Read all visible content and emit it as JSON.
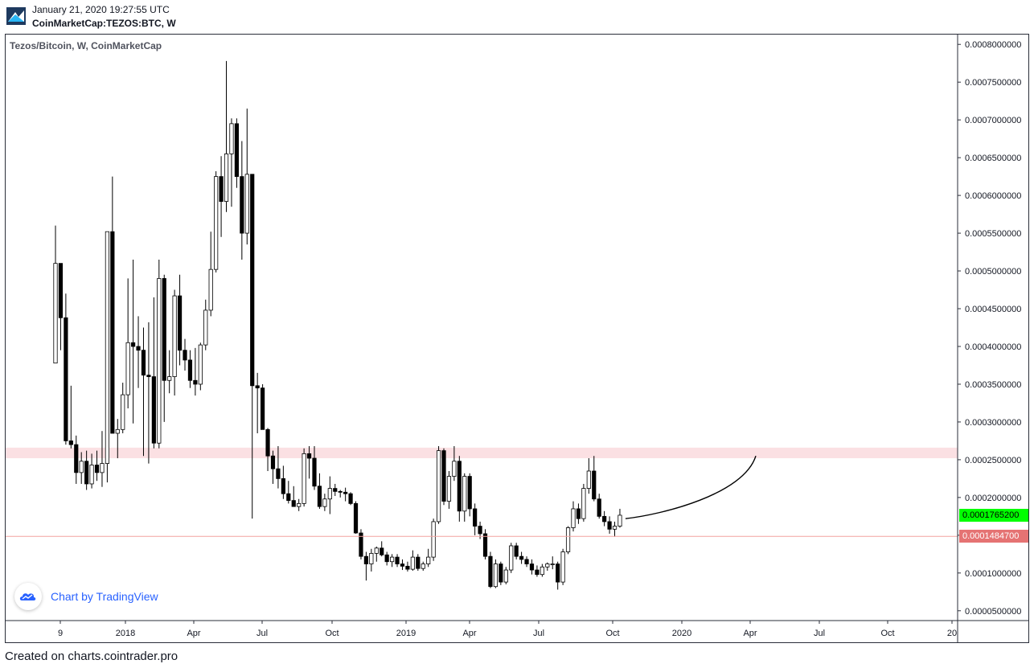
{
  "header": {
    "date": "January 21, 2020 19:27:55 UTC",
    "symbol": "CoinMarketCap:TEZOS:BTC, W",
    "logo_icon": "tradingview-logo-icon"
  },
  "legend": {
    "title": "Tezos/Bitcoin, W, CoinMarketCap"
  },
  "watermark": {
    "text": "Chart by TradingView",
    "icon": "tradingview-cloud-icon"
  },
  "footer": {
    "text": "Created on charts.cointrader.pro"
  },
  "price_labels": {
    "current": {
      "value": "0.0001765200",
      "color": "#00ff00"
    },
    "support": {
      "value": "0.0001484700",
      "color": "#e57373"
    }
  },
  "chart_data": {
    "type": "candlestick",
    "title": "Tezos/Bitcoin, W, CoinMarketCap",
    "interval": "W",
    "x_ticks": [
      "9",
      "2018",
      "Apr",
      "Jul",
      "Oct",
      "2019",
      "Apr",
      "Jul",
      "Oct",
      "2020",
      "Apr",
      "Jul",
      "Oct",
      "20"
    ],
    "y_ticks": [
      "0.0000500000",
      "0.0001000000",
      "0.0001500000",
      "0.0002000000",
      "0.0002500000",
      "0.0003000000",
      "0.0003500000",
      "0.0004000000",
      "0.0004500000",
      "0.0005000000",
      "0.0005500000",
      "0.0006000000",
      "0.0006500000",
      "0.0007000000",
      "0.0007500000",
      "0.0008000000"
    ],
    "ylim": [
      3.7e-05,
      0.000813
    ],
    "resistance_zone": [
      0.000252,
      0.000266
    ],
    "support_line": 0.00014847,
    "projected_curve": {
      "from": 0.000172,
      "to": 0.000255
    },
    "bull_color": "#ffffff",
    "bear_color": "#000000",
    "candles": [
      {
        "o": 0.000378,
        "h": 0.00056,
        "l": 0.000378,
        "c": 0.00051
      },
      {
        "o": 0.00051,
        "h": 0.00051,
        "l": 0.000395,
        "c": 0.000438
      },
      {
        "o": 0.000438,
        "h": 0.00047,
        "l": 0.00027,
        "c": 0.000275
      },
      {
        "o": 0.000275,
        "h": 0.000348,
        "l": 0.000265,
        "c": 0.00027
      },
      {
        "o": 0.00027,
        "h": 0.000282,
        "l": 0.000218,
        "c": 0.000233
      },
      {
        "o": 0.000233,
        "h": 0.00026,
        "l": 0.000218,
        "c": 0.000248
      },
      {
        "o": 0.000248,
        "h": 0.000262,
        "l": 0.00021,
        "c": 0.000218
      },
      {
        "o": 0.000218,
        "h": 0.000258,
        "l": 0.000212,
        "c": 0.000243
      },
      {
        "o": 0.000243,
        "h": 0.000262,
        "l": 0.000222,
        "c": 0.000233
      },
      {
        "o": 0.000233,
        "h": 0.000288,
        "l": 0.000214,
        "c": 0.000245
      },
      {
        "o": 0.000245,
        "h": 0.000552,
        "l": 0.00022,
        "c": 0.000552
      },
      {
        "o": 0.000552,
        "h": 0.000625,
        "l": 0.000285,
        "c": 0.000285
      },
      {
        "o": 0.000285,
        "h": 0.000304,
        "l": 0.000252,
        "c": 0.00029
      },
      {
        "o": 0.00029,
        "h": 0.000352,
        "l": 0.000285,
        "c": 0.000336
      },
      {
        "o": 0.000336,
        "h": 0.00049,
        "l": 0.000318,
        "c": 0.000405
      },
      {
        "o": 0.000405,
        "h": 0.000515,
        "l": 0.000298,
        "c": 0.0004
      },
      {
        "o": 0.0004,
        "h": 0.00044,
        "l": 0.000345,
        "c": 0.000395
      },
      {
        "o": 0.000395,
        "h": 0.000425,
        "l": 0.000255,
        "c": 0.000362
      },
      {
        "o": 0.000362,
        "h": 0.000432,
        "l": 0.000245,
        "c": 0.00036
      },
      {
        "o": 0.00036,
        "h": 0.000465,
        "l": 0.000265,
        "c": 0.000272
      },
      {
        "o": 0.000272,
        "h": 0.000515,
        "l": 0.000265,
        "c": 0.00049
      },
      {
        "o": 0.00049,
        "h": 0.000495,
        "l": 0.0003,
        "c": 0.000355
      },
      {
        "o": 0.000355,
        "h": 0.000395,
        "l": 0.000338,
        "c": 0.00036
      },
      {
        "o": 0.00036,
        "h": 0.000475,
        "l": 0.000335,
        "c": 0.000467
      },
      {
        "o": 0.000467,
        "h": 0.000495,
        "l": 0.000375,
        "c": 0.000395
      },
      {
        "o": 0.000395,
        "h": 0.00041,
        "l": 0.000368,
        "c": 0.000382
      },
      {
        "o": 0.000382,
        "h": 0.000395,
        "l": 0.000345,
        "c": 0.000355
      },
      {
        "o": 0.000355,
        "h": 0.000398,
        "l": 0.000335,
        "c": 0.00035
      },
      {
        "o": 0.00035,
        "h": 0.000405,
        "l": 0.000342,
        "c": 0.000402
      },
      {
        "o": 0.000402,
        "h": 0.000462,
        "l": 0.000395,
        "c": 0.000448
      },
      {
        "o": 0.000448,
        "h": 0.000552,
        "l": 0.00044,
        "c": 0.000502
      },
      {
        "o": 0.000502,
        "h": 0.000632,
        "l": 0.000498,
        "c": 0.000625
      },
      {
        "o": 0.000625,
        "h": 0.000652,
        "l": 0.000545,
        "c": 0.000592
      },
      {
        "o": 0.000592,
        "h": 0.000778,
        "l": 0.000578,
        "c": 0.000655
      },
      {
        "o": 0.000655,
        "h": 0.000702,
        "l": 0.000585,
        "c": 0.000695
      },
      {
        "o": 0.000695,
        "h": 0.000702,
        "l": 0.00061,
        "c": 0.000625
      },
      {
        "o": 0.000625,
        "h": 0.000672,
        "l": 0.000515,
        "c": 0.00055
      },
      {
        "o": 0.00055,
        "h": 0.000715,
        "l": 0.000535,
        "c": 0.000628
      },
      {
        "o": 0.000628,
        "h": 0.000628,
        "l": 0.000172,
        "c": 0.000348
      },
      {
        "o": 0.000348,
        "h": 0.000365,
        "l": 0.000285,
        "c": 0.000345
      },
      {
        "o": 0.000345,
        "h": 0.00035,
        "l": 0.00029,
        "c": 0.00029
      },
      {
        "o": 0.00029,
        "h": 0.000292,
        "l": 0.000235,
        "c": 0.000255
      },
      {
        "o": 0.000255,
        "h": 0.000262,
        "l": 0.000218,
        "c": 0.000238
      },
      {
        "o": 0.000238,
        "h": 0.000268,
        "l": 0.000212,
        "c": 0.000225
      },
      {
        "o": 0.000225,
        "h": 0.000242,
        "l": 0.000198,
        "c": 0.000205
      },
      {
        "o": 0.000205,
        "h": 0.000222,
        "l": 0.000192,
        "c": 0.000196
      },
      {
        "o": 0.000196,
        "h": 0.000215,
        "l": 0.000188,
        "c": 0.000188
      },
      {
        "o": 0.000188,
        "h": 0.000198,
        "l": 0.000182,
        "c": 0.000192
      },
      {
        "o": 0.000192,
        "h": 0.000265,
        "l": 0.000188,
        "c": 0.000258
      },
      {
        "o": 0.000258,
        "h": 0.000268,
        "l": 0.000225,
        "c": 0.000252
      },
      {
        "o": 0.000252,
        "h": 0.000268,
        "l": 0.00021,
        "c": 0.000215
      },
      {
        "o": 0.000215,
        "h": 0.000232,
        "l": 0.000185,
        "c": 0.000188
      },
      {
        "o": 0.000188,
        "h": 0.000205,
        "l": 0.000182,
        "c": 0.000198
      },
      {
        "o": 0.000198,
        "h": 0.000228,
        "l": 0.000178,
        "c": 0.000212
      },
      {
        "o": 0.000212,
        "h": 0.000218,
        "l": 0.000202,
        "c": 0.000208
      },
      {
        "o": 0.000208,
        "h": 0.00021,
        "l": 0.0002,
        "c": 0.000207
      },
      {
        "o": 0.000207,
        "h": 0.000213,
        "l": 0.000195,
        "c": 0.000205
      },
      {
        "o": 0.000205,
        "h": 0.000207,
        "l": 0.00019,
        "c": 0.000192
      },
      {
        "o": 0.000192,
        "h": 0.000195,
        "l": 0.000152,
        "c": 0.000153
      },
      {
        "o": 0.000153,
        "h": 0.000158,
        "l": 0.000118,
        "c": 0.000122
      },
      {
        "o": 0.000122,
        "h": 0.000128,
        "l": 9e-05,
        "c": 0.000112
      },
      {
        "o": 0.000112,
        "h": 0.000132,
        "l": 0.000102,
        "c": 0.000126
      },
      {
        "o": 0.000126,
        "h": 0.000135,
        "l": 0.000115,
        "c": 0.000133
      },
      {
        "o": 0.000133,
        "h": 0.000142,
        "l": 0.000122,
        "c": 0.000124
      },
      {
        "o": 0.000124,
        "h": 0.000128,
        "l": 0.00011,
        "c": 0.000115
      },
      {
        "o": 0.000115,
        "h": 0.000125,
        "l": 0.000108,
        "c": 0.000121
      },
      {
        "o": 0.000121,
        "h": 0.000125,
        "l": 0.000108,
        "c": 0.000112
      },
      {
        "o": 0.000112,
        "h": 0.000118,
        "l": 0.000104,
        "c": 0.000109
      },
      {
        "o": 0.000109,
        "h": 0.000115,
        "l": 0.000102,
        "c": 0.000105
      },
      {
        "o": 0.000105,
        "h": 0.00013,
        "l": 0.000103,
        "c": 0.000121
      },
      {
        "o": 0.000121,
        "h": 0.000125,
        "l": 0.000103,
        "c": 0.000106
      },
      {
        "o": 0.000106,
        "h": 0.000115,
        "l": 0.000103,
        "c": 0.000112
      },
      {
        "o": 0.000112,
        "h": 0.000132,
        "l": 0.000108,
        "c": 0.000121
      },
      {
        "o": 0.000121,
        "h": 0.000172,
        "l": 0.000116,
        "c": 0.000168
      },
      {
        "o": 0.000168,
        "h": 0.000268,
        "l": 0.000165,
        "c": 0.000262
      },
      {
        "o": 0.000262,
        "h": 0.000265,
        "l": 0.00019,
        "c": 0.000195
      },
      {
        "o": 0.000195,
        "h": 0.000235,
        "l": 0.000185,
        "c": 0.000228
      },
      {
        "o": 0.000228,
        "h": 0.000268,
        "l": 0.000222,
        "c": 0.000248
      },
      {
        "o": 0.000248,
        "h": 0.000255,
        "l": 0.000168,
        "c": 0.000182
      },
      {
        "o": 0.000182,
        "h": 0.000232,
        "l": 0.000168,
        "c": 0.000228
      },
      {
        "o": 0.000228,
        "h": 0.000232,
        "l": 0.000175,
        "c": 0.000185
      },
      {
        "o": 0.000185,
        "h": 0.000192,
        "l": 0.00015,
        "c": 0.000162
      },
      {
        "o": 0.000162,
        "h": 0.000168,
        "l": 0.000145,
        "c": 0.000152
      },
      {
        "o": 0.000152,
        "h": 0.000158,
        "l": 0.000118,
        "c": 0.000122
      },
      {
        "o": 0.000122,
        "h": 0.000128,
        "l": 8e-05,
        "c": 8.2e-05
      },
      {
        "o": 8.2e-05,
        "h": 0.000118,
        "l": 8e-05,
        "c": 0.000112
      },
      {
        "o": 0.000112,
        "h": 0.000115,
        "l": 8.4e-05,
        "c": 8.8e-05
      },
      {
        "o": 8.8e-05,
        "h": 0.000108,
        "l": 8.5e-05,
        "c": 0.000104
      },
      {
        "o": 0.000104,
        "h": 0.00014,
        "l": 0.0001,
        "c": 0.000136
      },
      {
        "o": 0.000136,
        "h": 0.00014,
        "l": 0.000118,
        "c": 0.000122
      },
      {
        "o": 0.000122,
        "h": 0.000128,
        "l": 0.000112,
        "c": 0.000118
      },
      {
        "o": 0.000118,
        "h": 0.000122,
        "l": 0.000108,
        "c": 0.000112
      },
      {
        "o": 0.000112,
        "h": 0.000118,
        "l": 9.8e-05,
        "c": 0.000104
      },
      {
        "o": 0.000104,
        "h": 0.00011,
        "l": 9.5e-05,
        "c": 9.8e-05
      },
      {
        "o": 9.8e-05,
        "h": 0.000112,
        "l": 9.5e-05,
        "c": 0.000108
      },
      {
        "o": 0.000108,
        "h": 0.000114,
        "l": 0.000103,
        "c": 0.000112
      },
      {
        "o": 0.000112,
        "h": 0.000122,
        "l": 0.000105,
        "c": 0.000112
      },
      {
        "o": 0.000112,
        "h": 0.000115,
        "l": 7.8e-05,
        "c": 8.8e-05
      },
      {
        "o": 8.8e-05,
        "h": 0.000132,
        "l": 8.4e-05,
        "c": 0.000128
      },
      {
        "o": 0.000128,
        "h": 0.000162,
        "l": 0.000125,
        "c": 0.00016
      },
      {
        "o": 0.00016,
        "h": 0.000195,
        "l": 0.000155,
        "c": 0.000185
      },
      {
        "o": 0.000185,
        "h": 0.000192,
        "l": 0.000165,
        "c": 0.000172
      },
      {
        "o": 0.000172,
        "h": 0.000218,
        "l": 0.000168,
        "c": 0.000212
      },
      {
        "o": 0.000212,
        "h": 0.000252,
        "l": 0.000205,
        "c": 0.000235
      },
      {
        "o": 0.000235,
        "h": 0.000255,
        "l": 0.000195,
        "c": 0.000198
      },
      {
        "o": 0.000198,
        "h": 0.000205,
        "l": 0.000172,
        "c": 0.000175
      },
      {
        "o": 0.000175,
        "h": 0.000182,
        "l": 0.000162,
        "c": 0.000168
      },
      {
        "o": 0.000168,
        "h": 0.000175,
        "l": 0.000152,
        "c": 0.000158
      },
      {
        "o": 0.000158,
        "h": 0.000168,
        "l": 0.000148,
        "c": 0.000162
      },
      {
        "o": 0.000162,
        "h": 0.000185,
        "l": 0.00016,
        "c": 0.0001765
      }
    ]
  }
}
